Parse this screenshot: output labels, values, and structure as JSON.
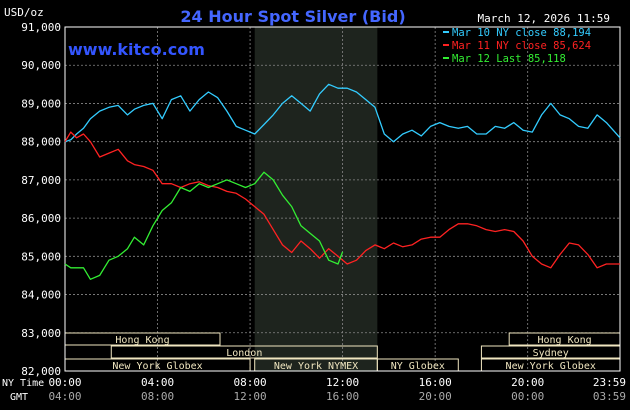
{
  "header": {
    "unit": "USD/oz",
    "title": "24 Hour Spot Silver (Bid)",
    "date": "March 12, 2026 11:59",
    "site": "www.kitco.com"
  },
  "legend": [
    {
      "label": "Mar 10 NY close 88,194",
      "color": "#33ccff"
    },
    {
      "label": "Mar 11 NY close 85,624",
      "color": "#ff2222"
    },
    {
      "label": "Mar 12 Last 85,118",
      "color": "#33ee33"
    }
  ],
  "colors": {
    "background": "#000000",
    "axis": "#ffffff",
    "grid": "#888888",
    "highlight_band": "#1e241e",
    "session_bar": "#f0e6c0",
    "title": "#4466ff",
    "site": "#3355ff"
  },
  "axes": {
    "ny_time_label": "NY Time",
    "gmt_label": "GMT",
    "ny_ticks": [
      "00:00",
      "04:00",
      "08:00",
      "12:00",
      "16:00",
      "20:00",
      "23:59"
    ],
    "gmt_ticks": [
      "04:00",
      "08:00",
      "12:00",
      "16:00",
      "20:00",
      "00:00",
      "03:59"
    ]
  },
  "sessions": [
    {
      "name": "Hong Kong",
      "row": 0,
      "start_hour": 0,
      "end_hour": 6.7
    },
    {
      "name": "London",
      "row": 1,
      "start_hour": 2,
      "end_hour": 13.5
    },
    {
      "name": "New York Globex",
      "row": 2,
      "start_hour": 0,
      "end_hour": 8
    },
    {
      "name": "New York NYMEX",
      "row": 2,
      "start_hour": 8.2,
      "end_hour": 13.5
    },
    {
      "name": "NY Globex",
      "row": 2,
      "start_hour": 13.5,
      "end_hour": 17
    },
    {
      "name": "Hong Kong",
      "row": 0,
      "start_hour": 19.2,
      "end_hour": 23.99
    },
    {
      "name": "Sydney",
      "row": 1,
      "start_hour": 18,
      "end_hour": 23.99
    },
    {
      "name": "New York Globex",
      "row": 2,
      "start_hour": 18,
      "end_hour": 23.99
    }
  ],
  "chart_data": {
    "type": "line",
    "title": "24 Hour Spot Silver (Bid)",
    "ylabel": "USD/oz",
    "xlabel": "NY Time",
    "ylim": [
      82000,
      91000
    ],
    "xlim": [
      0,
      23.99
    ],
    "y_ticks": [
      82000,
      83000,
      84000,
      85000,
      86000,
      87000,
      88000,
      89000,
      90000,
      91000
    ],
    "y_tick_labels": [
      "82,000",
      "83,000",
      "84,000",
      "85,000",
      "86,000",
      "87,000",
      "88,000",
      "89,000",
      "90,000",
      "91,000"
    ],
    "x_ticks": [
      0,
      4,
      8,
      12,
      16,
      20,
      23.99
    ],
    "highlight_x_range": [
      8.2,
      13.5
    ],
    "grid": true,
    "legend_position": "top-right",
    "series": [
      {
        "name": "Mar 10 NY close 88,194",
        "color": "#33ccff",
        "x": [
          0,
          0.25,
          0.5,
          0.8,
          1.1,
          1.5,
          1.9,
          2.3,
          2.7,
          3.0,
          3.4,
          3.8,
          4.2,
          4.6,
          5.0,
          5.4,
          5.8,
          6.2,
          6.6,
          7.0,
          7.4,
          7.8,
          8.2,
          8.6,
          9.0,
          9.4,
          9.8,
          10.2,
          10.6,
          11.0,
          11.4,
          11.8,
          12.2,
          12.6,
          13.0,
          13.4,
          13.8,
          14.2,
          14.6,
          15.0,
          15.4,
          15.8,
          16.2,
          16.6,
          17.0,
          17.4,
          17.8,
          18.2,
          18.6,
          19.0,
          19.4,
          19.8,
          20.2,
          20.6,
          21.0,
          21.4,
          21.8,
          22.2,
          22.6,
          23.0,
          23.4,
          23.99
        ],
        "y": [
          88000,
          88050,
          88200,
          88350,
          88600,
          88800,
          88900,
          88950,
          88700,
          88850,
          88950,
          89000,
          88600,
          89100,
          89200,
          88800,
          89100,
          89300,
          89150,
          88800,
          88400,
          88300,
          88200,
          88450,
          88700,
          89000,
          89200,
          89000,
          88800,
          89250,
          89500,
          89400,
          89400,
          89300,
          89100,
          88900,
          88200,
          88000,
          88200,
          88300,
          88150,
          88400,
          88500,
          88400,
          88350,
          88400,
          88200,
          88200,
          88400,
          88350,
          88500,
          88300,
          88250,
          88700,
          89000,
          88700,
          88600,
          88400,
          88350,
          88700,
          88500,
          88100
        ]
      },
      {
        "name": "Mar 11 NY close 85,624",
        "color": "#ff2222",
        "x": [
          0,
          0.25,
          0.5,
          0.8,
          1.1,
          1.5,
          1.9,
          2.3,
          2.7,
          3.0,
          3.4,
          3.8,
          4.2,
          4.6,
          5.0,
          5.4,
          5.8,
          6.2,
          6.6,
          7.0,
          7.4,
          7.8,
          8.2,
          8.6,
          9.0,
          9.4,
          9.8,
          10.2,
          10.6,
          11.0,
          11.4,
          11.8,
          12.2,
          12.6,
          13.0,
          13.4,
          13.8,
          14.2,
          14.6,
          15.0,
          15.4,
          15.8,
          16.2,
          16.6,
          17.0,
          17.4,
          17.8,
          18.2,
          18.6,
          19.0,
          19.4,
          19.8,
          20.2,
          20.6,
          21.0,
          21.4,
          21.8,
          22.2,
          22.6,
          23.0,
          23.4,
          23.99
        ],
        "y": [
          88000,
          88250,
          88100,
          88200,
          88000,
          87600,
          87700,
          87800,
          87500,
          87400,
          87350,
          87250,
          86900,
          86900,
          86800,
          86900,
          86950,
          86850,
          86800,
          86700,
          86650,
          86500,
          86300,
          86100,
          85700,
          85300,
          85100,
          85400,
          85200,
          84950,
          85200,
          85000,
          84800,
          84900,
          85150,
          85300,
          85200,
          85350,
          85250,
          85300,
          85450,
          85500,
          85500,
          85700,
          85850,
          85850,
          85800,
          85700,
          85650,
          85700,
          85650,
          85400,
          85000,
          84800,
          84700,
          85050,
          85350,
          85300,
          85050,
          84700,
          84800,
          84800
        ]
      },
      {
        "name": "Mar 12 Last 85,118",
        "color": "#33ee33",
        "x": [
          0,
          0.25,
          0.5,
          0.8,
          1.1,
          1.5,
          1.9,
          2.3,
          2.7,
          3.0,
          3.4,
          3.8,
          4.2,
          4.6,
          5.0,
          5.4,
          5.8,
          6.2,
          6.6,
          7.0,
          7.4,
          7.8,
          8.2,
          8.6,
          9.0,
          9.4,
          9.8,
          10.2,
          10.6,
          11.0,
          11.4,
          11.8,
          12.0
        ],
        "y": [
          84800,
          84700,
          84700,
          84700,
          84400,
          84500,
          84900,
          85000,
          85200,
          85500,
          85300,
          85800,
          86200,
          86400,
          86800,
          86700,
          86900,
          86800,
          86900,
          87000,
          86900,
          86800,
          86900,
          87200,
          87000,
          86600,
          86300,
          85800,
          85600,
          85400,
          84900,
          84800,
          85118
        ]
      }
    ]
  }
}
